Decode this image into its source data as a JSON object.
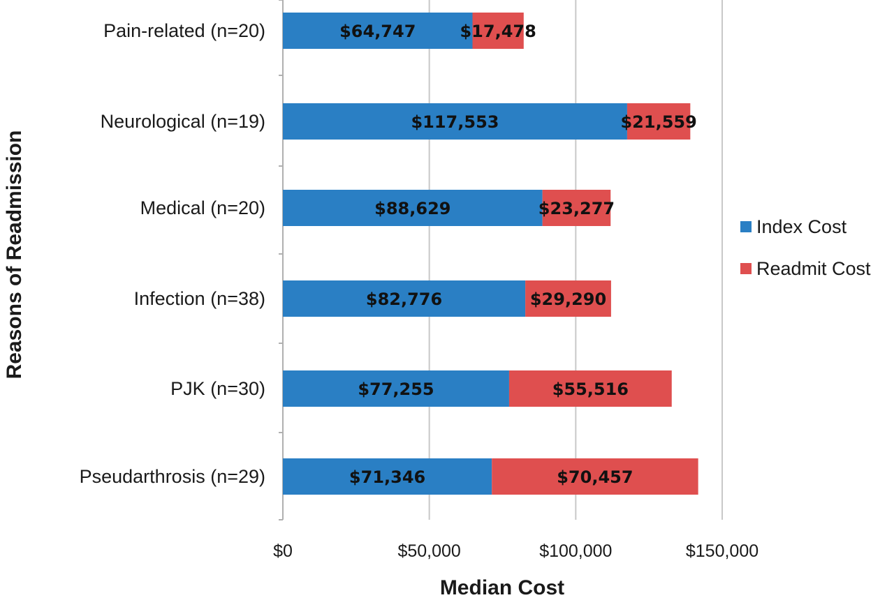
{
  "chart_data": {
    "type": "bar",
    "orientation": "horizontal",
    "stacked": true,
    "categories": [
      "Pain-related (n=20)",
      "Neurological (n=19)",
      "Medical (n=20)",
      "Infection (n=38)",
      "PJK (n=30)",
      "Pseudarthrosis (n=29)"
    ],
    "series": [
      {
        "name": "Index Cost",
        "color": "#2a7fc4",
        "values": [
          64747,
          117553,
          88629,
          82776,
          77255,
          71346
        ],
        "labels": [
          "$64,747",
          "$117,553",
          "$88,629",
          "$82,776",
          "$77,255",
          "$71,346"
        ]
      },
      {
        "name": "Readmit Cost",
        "color": "#df4f4f",
        "values": [
          17478,
          21559,
          23277,
          29290,
          55516,
          70457
        ],
        "labels": [
          "$17,478",
          "$21,559",
          "$23,277",
          "$29,290",
          "$55,516",
          "$70,457"
        ]
      }
    ],
    "xlabel": "Median Cost",
    "ylabel": "Reasons of Readmission",
    "xlim": [
      0,
      150000
    ],
    "xticks": [
      0,
      50000,
      100000,
      150000
    ],
    "xtick_labels": [
      "$0",
      "$50,000",
      "$100,000",
      "$150,000"
    ],
    "grid": "vertical",
    "legend_position": "right"
  }
}
